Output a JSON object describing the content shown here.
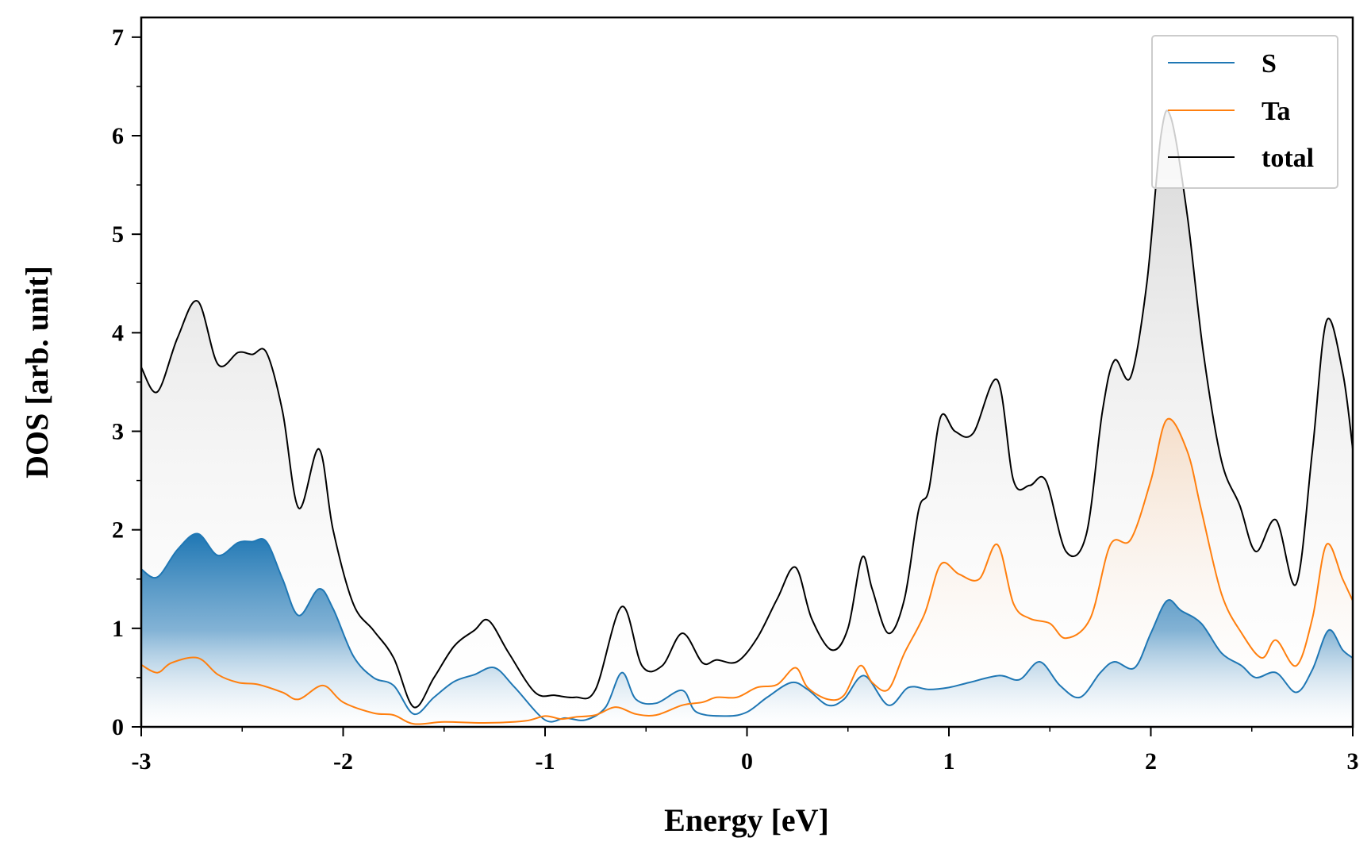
{
  "chart_data": {
    "type": "area",
    "xlabel": "Energy [eV]",
    "ylabel": "DOS [arb. unit]",
    "xlim": [
      -3,
      3
    ],
    "ylim": [
      0,
      7.2
    ],
    "xticks": [
      -3,
      -2,
      -1,
      0,
      1,
      2,
      3
    ],
    "yticks": [
      0,
      1,
      2,
      3,
      4,
      5,
      6,
      7
    ],
    "xtick_labels": [
      "-3",
      "-2",
      "-1",
      "0",
      "1",
      "2",
      "3"
    ],
    "ytick_labels": [
      "0",
      "1",
      "2",
      "3",
      "4",
      "5",
      "6",
      "7"
    ],
    "grid": false,
    "legend_position": "top-right",
    "series": [
      {
        "name": "S",
        "color": "#1f77b4",
        "fill": "gradient",
        "points": [
          [
            -3,
            1.6
          ],
          [
            -2.92,
            1.52
          ],
          [
            -2.82,
            1.8
          ],
          [
            -2.72,
            1.96
          ],
          [
            -2.62,
            1.74
          ],
          [
            -2.52,
            1.87
          ],
          [
            -2.45,
            1.88
          ],
          [
            -2.38,
            1.88
          ],
          [
            -2.3,
            1.5
          ],
          [
            -2.22,
            1.13
          ],
          [
            -2.12,
            1.4
          ],
          [
            -2.05,
            1.2
          ],
          [
            -1.95,
            0.72
          ],
          [
            -1.85,
            0.5
          ],
          [
            -1.75,
            0.42
          ],
          [
            -1.65,
            0.13
          ],
          [
            -1.55,
            0.3
          ],
          [
            -1.45,
            0.46
          ],
          [
            -1.35,
            0.53
          ],
          [
            -1.25,
            0.6
          ],
          [
            -1.15,
            0.4
          ],
          [
            -1.0,
            0.07
          ],
          [
            -0.9,
            0.09
          ],
          [
            -0.8,
            0.07
          ],
          [
            -0.7,
            0.2
          ],
          [
            -0.62,
            0.55
          ],
          [
            -0.55,
            0.28
          ],
          [
            -0.45,
            0.24
          ],
          [
            -0.32,
            0.37
          ],
          [
            -0.25,
            0.15
          ],
          [
            -0.1,
            0.11
          ],
          [
            0.0,
            0.15
          ],
          [
            0.1,
            0.3
          ],
          [
            0.22,
            0.45
          ],
          [
            0.3,
            0.38
          ],
          [
            0.4,
            0.22
          ],
          [
            0.48,
            0.28
          ],
          [
            0.58,
            0.52
          ],
          [
            0.7,
            0.22
          ],
          [
            0.8,
            0.4
          ],
          [
            0.9,
            0.38
          ],
          [
            1.0,
            0.4
          ],
          [
            1.1,
            0.45
          ],
          [
            1.25,
            0.52
          ],
          [
            1.35,
            0.48
          ],
          [
            1.45,
            0.66
          ],
          [
            1.55,
            0.42
          ],
          [
            1.65,
            0.3
          ],
          [
            1.75,
            0.55
          ],
          [
            1.82,
            0.66
          ],
          [
            1.92,
            0.6
          ],
          [
            2.0,
            0.95
          ],
          [
            2.08,
            1.28
          ],
          [
            2.15,
            1.18
          ],
          [
            2.25,
            1.05
          ],
          [
            2.35,
            0.75
          ],
          [
            2.45,
            0.62
          ],
          [
            2.52,
            0.5
          ],
          [
            2.62,
            0.55
          ],
          [
            2.72,
            0.35
          ],
          [
            2.8,
            0.58
          ],
          [
            2.88,
            0.98
          ],
          [
            2.95,
            0.78
          ],
          [
            3.0,
            0.7
          ]
        ]
      },
      {
        "name": "Ta",
        "color": "#ff7f0e",
        "fill": "gradient",
        "points": [
          [
            -3,
            0.63
          ],
          [
            -2.92,
            0.55
          ],
          [
            -2.85,
            0.65
          ],
          [
            -2.72,
            0.7
          ],
          [
            -2.62,
            0.53
          ],
          [
            -2.52,
            0.45
          ],
          [
            -2.42,
            0.43
          ],
          [
            -2.3,
            0.35
          ],
          [
            -2.22,
            0.28
          ],
          [
            -2.1,
            0.42
          ],
          [
            -2.0,
            0.25
          ],
          [
            -1.85,
            0.14
          ],
          [
            -1.75,
            0.12
          ],
          [
            -1.65,
            0.03
          ],
          [
            -1.5,
            0.05
          ],
          [
            -1.3,
            0.04
          ],
          [
            -1.1,
            0.06
          ],
          [
            -1.0,
            0.11
          ],
          [
            -0.92,
            0.08
          ],
          [
            -0.85,
            0.1
          ],
          [
            -0.75,
            0.12
          ],
          [
            -0.65,
            0.2
          ],
          [
            -0.55,
            0.13
          ],
          [
            -0.45,
            0.12
          ],
          [
            -0.32,
            0.22
          ],
          [
            -0.22,
            0.25
          ],
          [
            -0.15,
            0.3
          ],
          [
            -0.05,
            0.3
          ],
          [
            0.05,
            0.4
          ],
          [
            0.15,
            0.43
          ],
          [
            0.24,
            0.6
          ],
          [
            0.3,
            0.4
          ],
          [
            0.4,
            0.28
          ],
          [
            0.48,
            0.32
          ],
          [
            0.56,
            0.62
          ],
          [
            0.62,
            0.45
          ],
          [
            0.7,
            0.38
          ],
          [
            0.78,
            0.75
          ],
          [
            0.88,
            1.15
          ],
          [
            0.96,
            1.65
          ],
          [
            1.05,
            1.55
          ],
          [
            1.15,
            1.5
          ],
          [
            1.24,
            1.85
          ],
          [
            1.32,
            1.25
          ],
          [
            1.4,
            1.1
          ],
          [
            1.5,
            1.05
          ],
          [
            1.58,
            0.9
          ],
          [
            1.7,
            1.1
          ],
          [
            1.8,
            1.85
          ],
          [
            1.9,
            1.9
          ],
          [
            2.0,
            2.5
          ],
          [
            2.08,
            3.12
          ],
          [
            2.18,
            2.8
          ],
          [
            2.25,
            2.2
          ],
          [
            2.35,
            1.35
          ],
          [
            2.45,
            0.95
          ],
          [
            2.55,
            0.7
          ],
          [
            2.62,
            0.88
          ],
          [
            2.72,
            0.62
          ],
          [
            2.8,
            1.1
          ],
          [
            2.87,
            1.85
          ],
          [
            2.95,
            1.5
          ],
          [
            3.0,
            1.28
          ]
        ]
      },
      {
        "name": "total",
        "color": "#000000",
        "fill": "gradient",
        "points": [
          [
            -3,
            3.65
          ],
          [
            -2.92,
            3.4
          ],
          [
            -2.82,
            3.95
          ],
          [
            -2.72,
            4.32
          ],
          [
            -2.62,
            3.68
          ],
          [
            -2.52,
            3.8
          ],
          [
            -2.45,
            3.78
          ],
          [
            -2.38,
            3.8
          ],
          [
            -2.3,
            3.2
          ],
          [
            -2.22,
            2.22
          ],
          [
            -2.12,
            2.82
          ],
          [
            -2.05,
            2.0
          ],
          [
            -1.95,
            1.25
          ],
          [
            -1.85,
            0.98
          ],
          [
            -1.75,
            0.7
          ],
          [
            -1.65,
            0.2
          ],
          [
            -1.55,
            0.5
          ],
          [
            -1.45,
            0.82
          ],
          [
            -1.35,
            0.98
          ],
          [
            -1.28,
            1.08
          ],
          [
            -1.18,
            0.75
          ],
          [
            -1.05,
            0.35
          ],
          [
            -0.95,
            0.32
          ],
          [
            -0.85,
            0.3
          ],
          [
            -0.75,
            0.38
          ],
          [
            -0.62,
            1.22
          ],
          [
            -0.52,
            0.62
          ],
          [
            -0.42,
            0.62
          ],
          [
            -0.32,
            0.95
          ],
          [
            -0.22,
            0.65
          ],
          [
            -0.15,
            0.68
          ],
          [
            -0.05,
            0.66
          ],
          [
            0.05,
            0.9
          ],
          [
            0.15,
            1.3
          ],
          [
            0.24,
            1.62
          ],
          [
            0.32,
            1.1
          ],
          [
            0.42,
            0.78
          ],
          [
            0.5,
            1.0
          ],
          [
            0.57,
            1.72
          ],
          [
            0.62,
            1.4
          ],
          [
            0.7,
            0.95
          ],
          [
            0.78,
            1.3
          ],
          [
            0.85,
            2.2
          ],
          [
            0.9,
            2.4
          ],
          [
            0.96,
            3.15
          ],
          [
            1.03,
            3.0
          ],
          [
            1.12,
            2.98
          ],
          [
            1.24,
            3.52
          ],
          [
            1.32,
            2.5
          ],
          [
            1.4,
            2.45
          ],
          [
            1.48,
            2.5
          ],
          [
            1.58,
            1.78
          ],
          [
            1.68,
            1.95
          ],
          [
            1.76,
            3.2
          ],
          [
            1.82,
            3.72
          ],
          [
            1.9,
            3.55
          ],
          [
            1.98,
            4.5
          ],
          [
            2.05,
            6.0
          ],
          [
            2.1,
            6.18
          ],
          [
            2.18,
            5.2
          ],
          [
            2.26,
            3.8
          ],
          [
            2.35,
            2.7
          ],
          [
            2.44,
            2.25
          ],
          [
            2.52,
            1.78
          ],
          [
            2.62,
            2.1
          ],
          [
            2.72,
            1.45
          ],
          [
            2.8,
            2.8
          ],
          [
            2.87,
            4.12
          ],
          [
            2.95,
            3.6
          ],
          [
            3.0,
            2.82
          ]
        ]
      }
    ]
  }
}
